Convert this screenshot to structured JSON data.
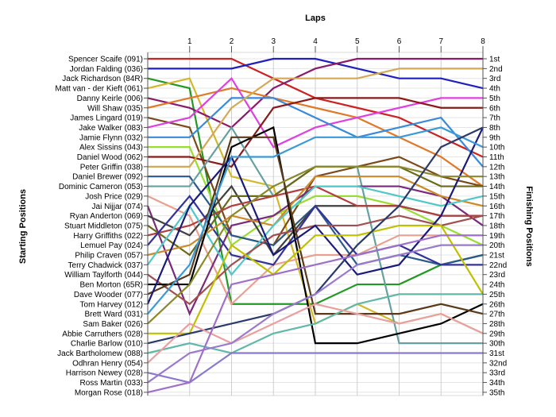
{
  "chart_data": {
    "type": "line",
    "title": "",
    "xlabel": "Laps",
    "ylabel_left": "Starting Positions",
    "ylabel_right": "Finishing Positions",
    "x": [
      0,
      1,
      2,
      3,
      4,
      5,
      6,
      7,
      8
    ],
    "x_tick_labels": [
      "1",
      "2",
      "3",
      "4",
      "5",
      "6",
      "7",
      "8"
    ],
    "ylim": [
      1,
      35
    ],
    "y_inverted": true,
    "grid": true,
    "drivers": [
      "Spencer Scaife (091)",
      "Jordan Falding (036)",
      "Jack Richardson (84R)",
      "Matt van - der Kieft (061)",
      "Danny Keirle (006)",
      "Will Shaw (035)",
      "James Lingard (019)",
      "Jake Walker (083)",
      "Jamie Flynn (032)",
      "Alex Sissins (043)",
      "Daniel Wood (062)",
      "Peter Griffin (038)",
      "Daniel Brewer (092)",
      "Dominic Cameron (053)",
      "Josh Price (029)",
      "Jai Nijjar (074)",
      "Ryan Anderton (069)",
      "Stuart Middleton (075)",
      "Harry Griffiths (022)",
      "Lemuel Pay (024)",
      "Philip Craven (057)",
      "Terry Chadwick (037)",
      "William Taylforth (044)",
      "Ben Morton (65R)",
      "Dave Wooder (077)",
      "Tom Harvey (012)",
      "Brett Ward (031)",
      "Sam Baker (026)",
      "Abbie Carruthers (028)",
      "Charlie Barlow (010)",
      "Jack Bartholomew (088)",
      "Odhran Henry (054)",
      "Harrison Newey (028)",
      "Ross Martin (033)",
      "Morgan Rose (018)"
    ],
    "finishing_labels": [
      "1st",
      "2nd",
      "3rd",
      "4th",
      "5th",
      "6th",
      "7th",
      "8th",
      "9th",
      "10th",
      "11th",
      "12th",
      "13th",
      "14th",
      "15th",
      "16th",
      "17th",
      "18th",
      "19th",
      "20th",
      "21st",
      "22nd",
      "23rd",
      "24th",
      "25th",
      "26th",
      "27th",
      "28th",
      "29th",
      "30th",
      "31st",
      "32nd",
      "33rd",
      "34th",
      "35th"
    ],
    "series": [
      {
        "color": "#cc2222",
        "values": [
          1,
          1,
          1,
          3,
          5,
          6,
          7,
          9,
          11
        ]
      },
      {
        "color": "#1f1fbf",
        "values": [
          2,
          2,
          2,
          1,
          1,
          2,
          3,
          3,
          4
        ]
      },
      {
        "color": "#229922",
        "values": [
          3,
          4,
          26,
          26,
          26,
          24,
          24,
          22,
          21
        ]
      },
      {
        "color": "#d4b82a",
        "values": [
          4,
          3,
          13,
          14,
          28,
          26,
          28,
          27,
          29
        ]
      },
      {
        "color": "#8b1a6b",
        "values": [
          5,
          6,
          8,
          4,
          2,
          1,
          1,
          1,
          1
        ]
      },
      {
        "color": "#e07a2a",
        "values": [
          6,
          5,
          4,
          5,
          6,
          7,
          9,
          11,
          14
        ]
      },
      {
        "color": "#7b4a1a",
        "values": [
          7,
          8,
          19,
          20,
          13,
          12,
          11,
          13,
          14
        ]
      },
      {
        "color": "#e040e0",
        "values": [
          8,
          7,
          3,
          10,
          8,
          7,
          6,
          5,
          5
        ]
      },
      {
        "color": "#3a8ad8",
        "values": [
          9,
          9,
          5,
          5,
          7,
          9,
          8,
          7,
          12
        ]
      },
      {
        "color": "#99dd33",
        "values": [
          10,
          10,
          20,
          17,
          15,
          15,
          16,
          18,
          20
        ]
      },
      {
        "color": "#8a1a1a",
        "values": [
          11,
          11,
          12,
          6,
          5,
          5,
          5,
          6,
          6
        ]
      },
      {
        "color": "#d4a855",
        "values": [
          12,
          12,
          6,
          3,
          3,
          3,
          2,
          2,
          2
        ]
      },
      {
        "color": "#2a5a8a",
        "values": [
          13,
          13,
          19,
          20,
          16,
          22,
          21,
          22,
          21
        ]
      },
      {
        "color": "#66a0a0",
        "values": [
          14,
          14,
          8,
          15,
          12,
          12,
          30,
          30,
          30
        ]
      },
      {
        "color": "#e8a090",
        "values": [
          15,
          17,
          26,
          22,
          21,
          21,
          19,
          19,
          19
        ]
      },
      {
        "color": "#7a2a7a",
        "values": [
          16,
          27,
          18,
          17,
          14,
          14,
          14,
          15,
          18
        ]
      },
      {
        "color": "#404040",
        "values": [
          17,
          19,
          14,
          21,
          16,
          16,
          16,
          17,
          17
        ]
      },
      {
        "color": "#6a6a1a",
        "values": [
          18,
          21,
          15,
          15,
          12,
          12,
          12,
          14,
          14
        ]
      },
      {
        "color": "#b04040",
        "values": [
          19,
          18,
          16,
          15,
          14,
          16,
          16,
          17,
          17
        ]
      },
      {
        "color": "#333399",
        "values": [
          20,
          15,
          21,
          22,
          16,
          21,
          20,
          22,
          22
        ]
      },
      {
        "color": "#cc8a2a",
        "values": [
          21,
          20,
          17,
          18,
          13,
          13,
          13,
          15,
          16
        ]
      },
      {
        "color": "#50c8c8",
        "values": [
          22,
          16,
          23,
          18,
          14,
          14,
          15,
          16,
          15
        ]
      },
      {
        "color": "#a05050",
        "values": [
          23,
          26,
          22,
          19,
          18,
          18,
          17,
          18,
          17
        ]
      },
      {
        "color": "#000000",
        "values": [
          24,
          24,
          10,
          8,
          30,
          30,
          29,
          28,
          26
        ]
      },
      {
        "color": "#5a3a1a",
        "values": [
          25,
          23,
          9,
          9,
          27,
          27,
          27,
          26,
          27
        ]
      },
      {
        "color": "#1a1a7a",
        "values": [
          26,
          16,
          11,
          21,
          18,
          23,
          22,
          17,
          8
        ]
      },
      {
        "color": "#3a9ad8",
        "values": [
          27,
          22,
          11,
          11,
          9,
          9,
          9,
          8,
          10
        ]
      },
      {
        "color": "#8a8a2a",
        "values": [
          28,
          24,
          17,
          14,
          12,
          12,
          12,
          13,
          13
        ]
      },
      {
        "color": "#c0c000",
        "values": [
          29,
          29,
          20,
          23,
          19,
          19,
          18,
          18,
          25
        ]
      },
      {
        "color": "#2a3a6a",
        "values": [
          30,
          29,
          28,
          27,
          25,
          20,
          16,
          10,
          8
        ]
      },
      {
        "color": "#60b8a8",
        "values": [
          31,
          30,
          31,
          29,
          28,
          26,
          25,
          25,
          25
        ]
      },
      {
        "color": "#e8a0a0",
        "values": [
          32,
          28,
          30,
          28,
          26,
          27,
          28,
          27,
          29
        ]
      },
      {
        "color": "#8a7acc",
        "values": [
          33,
          34,
          31,
          31,
          31,
          31,
          31,
          31,
          31
        ]
      },
      {
        "color": "#9a7acc",
        "values": [
          34,
          31,
          30,
          27,
          25,
          22,
          21,
          20,
          20
        ]
      },
      {
        "color": "#a070c8",
        "values": [
          35,
          34,
          24,
          23,
          22,
          21,
          20,
          19,
          19
        ]
      }
    ]
  }
}
